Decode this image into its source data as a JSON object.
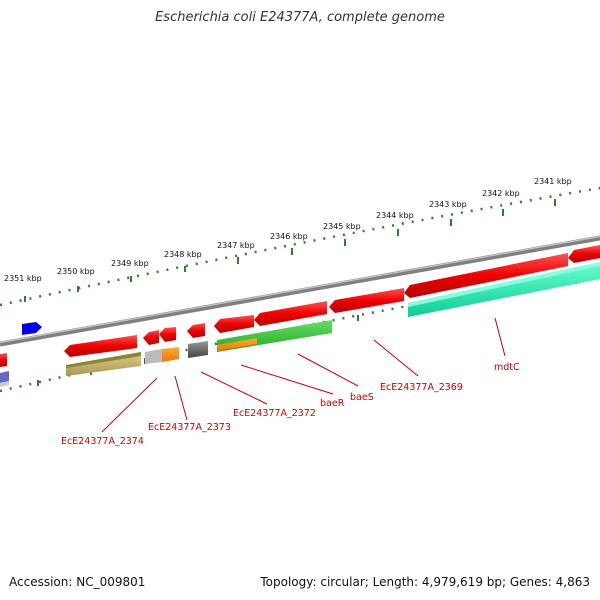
{
  "title": "Escherichia coli E24377A, complete genome",
  "footer": {
    "accession": "Accession: NC_009801",
    "topology": "Topology: circular; Length: 4,979,619 bp; Genes: 4,863"
  },
  "scale_labels": [
    "2351 kbp",
    "2350 kbp",
    "2349 kbp",
    "2348 kbp",
    "2347 kbp",
    "2346 kbp",
    "2345 kbp",
    "2344 kbp",
    "2343 kbp",
    "2342 kbp",
    "2341 kbp"
  ],
  "gene_labels": [
    "EcE24377A_2374",
    "EcE24377A_2373",
    "EcE24377A_2372",
    "baeR",
    "baeS",
    "EcE24377A_2369",
    "mdtC"
  ],
  "colors": {
    "backbone": "#808080",
    "scale_ticks": "#2e7d32",
    "gene_red": "#ee0000",
    "gene_green": "#33bb33",
    "gene_cyan": "#22ddaa",
    "gene_olive": "#bbaa66",
    "gene_orange": "#ff8800",
    "gene_blue": "#0000ee",
    "gene_gray": "#555555",
    "label_red": "#cc0000"
  }
}
